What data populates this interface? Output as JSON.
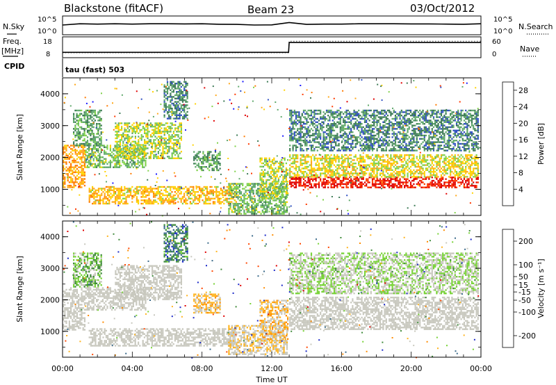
{
  "header": {
    "station": "Blackstone (fitACF)",
    "beam": "Beam 23",
    "date": "03/Oct/2012"
  },
  "noise_panel": {
    "left_label": "N.Sky",
    "left_ticks": [
      "10^5",
      "10^0"
    ],
    "right_label": "N.Search",
    "right_ticks": [
      "10^5",
      "10^0"
    ]
  },
  "freq_panel": {
    "left_label_1": "Freq.",
    "left_label_2": "[MHz]",
    "left_ticks": [
      "18",
      "8"
    ],
    "right_label": "Nave",
    "right_ticks": [
      "60",
      "0"
    ],
    "cpid_label": "CPID",
    "cpid_text": "tau (fast) 503"
  },
  "colors": {
    "power": [
      "#1a1aff",
      "#2f4fc2",
      "#3c7a55",
      "#5fa86b",
      "#7fd14a",
      "#ffd200",
      "#ffa81a",
      "#ff7a00",
      "#ff3a00",
      "#e00000"
    ],
    "velocity": [
      "#1a28c8",
      "#3a6a8a",
      "#3f8a3a",
      "#77d236",
      "#c8c8be",
      "#c8c8be",
      "#ffb41e",
      "#ff8c00",
      "#ff4600",
      "#e00000"
    ],
    "ground_scatter": "#c8c8be"
  },
  "chart_data": [
    {
      "type": "line",
      "panel": "noise",
      "series": [
        {
          "name": "N.Sky",
          "style": "solid",
          "x": [
            "00:00",
            "01:00",
            "02:00",
            "03:00",
            "04:00",
            "05:00",
            "06:00",
            "07:00",
            "08:00",
            "09:00",
            "10:00",
            "11:00",
            "12:00",
            "13:00",
            "14:00",
            "15:00",
            "16:00",
            "17:00",
            "18:00",
            "19:00",
            "20:00",
            "21:00",
            "22:00",
            "23:00",
            "24:00"
          ],
          "values": [
            2.6,
            3.0,
            2.9,
            3.0,
            2.9,
            3.0,
            3.0,
            2.95,
            3.0,
            2.85,
            2.8,
            2.6,
            2.65,
            3.4,
            2.8,
            2.9,
            2.9,
            3.0,
            3.0,
            3.0,
            2.95,
            2.95,
            2.9,
            2.85,
            3.0
          ]
        }
      ],
      "ylim": [
        0,
        5
      ],
      "log_scale": true
    },
    {
      "type": "line",
      "panel": "frequency",
      "series": [
        {
          "name": "Freq.",
          "style": "solid",
          "x": [
            "00:00",
            "12:58",
            "13:00",
            "24:00"
          ],
          "values": [
            10.2,
            10.2,
            15.6,
            15.6
          ]
        },
        {
          "name": "Nave",
          "style": "dotted",
          "x": [
            "00:00",
            "12:58",
            "13:00",
            "24:00"
          ],
          "values": [
            12,
            12,
            50,
            50
          ]
        }
      ],
      "ylim": [
        8,
        18
      ],
      "y2lim": [
        0,
        60
      ]
    },
    {
      "type": "heatmap",
      "panel": "power",
      "xlabel": "Time UT",
      "ylabel": "Slant Range [km]",
      "x_ticks": [
        "00:00",
        "04:00",
        "08:00",
        "12:00",
        "16:00",
        "20:00",
        "00:00"
      ],
      "x_range_hours": [
        0,
        24
      ],
      "ylim": [
        180,
        4500
      ],
      "y_ticks": [
        1000,
        2000,
        3000,
        4000
      ],
      "colorbar": {
        "label": "Power [dB]",
        "ticks": [
          4,
          8,
          12,
          16,
          20,
          24,
          28
        ],
        "range": [
          0,
          30
        ]
      },
      "features": [
        {
          "t0": 0.0,
          "t1": 1.3,
          "r0": 1050,
          "r1": 2400,
          "value": 20
        },
        {
          "t0": 0.6,
          "t1": 2.2,
          "r0": 2400,
          "r1": 3500,
          "value": 10
        },
        {
          "t0": 1.3,
          "t1": 4.8,
          "r0": 1700,
          "r1": 2400,
          "value": 12
        },
        {
          "t0": 3.0,
          "t1": 6.8,
          "r0": 2000,
          "r1": 3100,
          "value": 14
        },
        {
          "t0": 1.5,
          "t1": 10.0,
          "r0": 550,
          "r1": 1100,
          "value": 18
        },
        {
          "t0": 5.8,
          "t1": 7.2,
          "r0": 3200,
          "r1": 4400,
          "value": 8
        },
        {
          "t0": 7.5,
          "t1": 9.0,
          "r0": 1600,
          "r1": 2200,
          "value": 10
        },
        {
          "t0": 9.5,
          "t1": 12.9,
          "r0": 250,
          "r1": 1200,
          "value": 12
        },
        {
          "t0": 11.3,
          "t1": 12.9,
          "r0": 700,
          "r1": 2000,
          "value": 14
        },
        {
          "t0": 13.0,
          "t1": 23.8,
          "r0": 1050,
          "r1": 1400,
          "value": 28
        },
        {
          "t0": 13.0,
          "t1": 23.8,
          "r0": 1400,
          "r1": 2100,
          "value": 16
        },
        {
          "t0": 13.0,
          "t1": 23.8,
          "r0": 2200,
          "r1": 3500,
          "value": 8
        }
      ]
    },
    {
      "type": "heatmap",
      "panel": "velocity",
      "xlabel": "Time UT",
      "ylabel": "Slant Range [km]",
      "x_ticks": [
        "00:00",
        "04:00",
        "08:00",
        "12:00",
        "16:00",
        "20:00",
        "00:00"
      ],
      "x_range_hours": [
        0,
        24
      ],
      "ylim": [
        180,
        4500
      ],
      "y_ticks": [
        1000,
        2000,
        3000,
        4000
      ],
      "colorbar": {
        "label": "Velocity [m s⁻¹]",
        "ticks": [
          200,
          100,
          50,
          15,
          -15,
          -50,
          -100,
          -200
        ],
        "range": [
          -250,
          250
        ]
      },
      "features": [
        {
          "t0": 0.0,
          "t1": 1.3,
          "r0": 1050,
          "r1": 2400,
          "value": 0,
          "ground_scatter": true
        },
        {
          "t0": 0.6,
          "t1": 2.2,
          "r0": 2400,
          "r1": 3500,
          "value": -80
        },
        {
          "t0": 1.3,
          "t1": 4.8,
          "r0": 1700,
          "r1": 2400,
          "value": 0,
          "ground_scatter": true
        },
        {
          "t0": 3.0,
          "t1": 6.8,
          "r0": 2000,
          "r1": 3100,
          "value": 0,
          "ground_scatter": true
        },
        {
          "t0": 1.5,
          "t1": 10.0,
          "r0": 550,
          "r1": 1100,
          "value": 0,
          "ground_scatter": true
        },
        {
          "t0": 5.8,
          "t1": 7.2,
          "r0": 3200,
          "r1": 4400,
          "value": -150
        },
        {
          "t0": 7.5,
          "t1": 9.0,
          "r0": 1600,
          "r1": 2200,
          "value": 60
        },
        {
          "t0": 9.5,
          "t1": 12.9,
          "r0": 250,
          "r1": 1200,
          "value": 30
        },
        {
          "t0": 11.3,
          "t1": 12.9,
          "r0": 700,
          "r1": 2000,
          "value": 60
        },
        {
          "t0": 13.0,
          "t1": 23.8,
          "r0": 1050,
          "r1": 2100,
          "value": 0,
          "ground_scatter": true
        },
        {
          "t0": 13.0,
          "t1": 23.8,
          "r0": 2200,
          "r1": 3500,
          "value": -40
        }
      ]
    }
  ]
}
